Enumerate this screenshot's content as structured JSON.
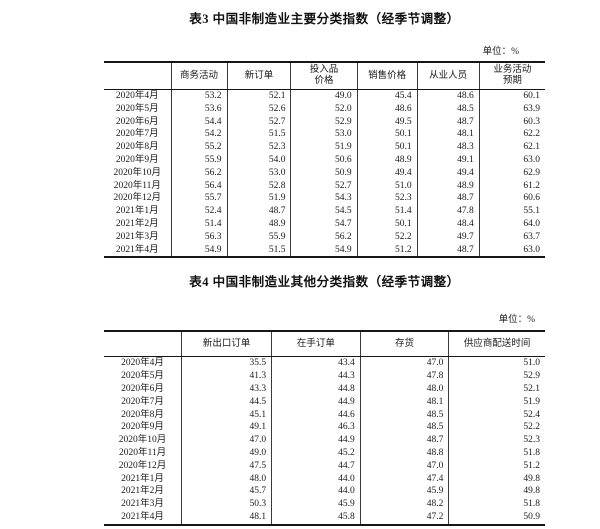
{
  "tables": [
    {
      "title": "表3  中国非制造业主要分类指数（经季节调整）",
      "unit_label": "单位：%",
      "columns": [
        "商务活动",
        "新订单",
        "投入品\n价格",
        "销售价格",
        "从业人员",
        "业务活动\n预期"
      ],
      "rows": [
        {
          "label": "2020年4月",
          "values": [
            "53.2",
            "52.1",
            "49.0",
            "45.4",
            "48.6",
            "60.1"
          ]
        },
        {
          "label": "2020年5月",
          "values": [
            "53.6",
            "52.6",
            "52.0",
            "48.6",
            "48.5",
            "63.9"
          ]
        },
        {
          "label": "2020年6月",
          "values": [
            "54.4",
            "52.7",
            "52.9",
            "49.5",
            "48.7",
            "60.3"
          ]
        },
        {
          "label": "2020年7月",
          "values": [
            "54.2",
            "51.5",
            "53.0",
            "50.1",
            "48.1",
            "62.2"
          ]
        },
        {
          "label": "2020年8月",
          "values": [
            "55.2",
            "52.3",
            "51.9",
            "50.1",
            "48.3",
            "62.1"
          ]
        },
        {
          "label": "2020年9月",
          "values": [
            "55.9",
            "54.0",
            "50.6",
            "48.9",
            "49.1",
            "63.0"
          ]
        },
        {
          "label": "2020年10月",
          "values": [
            "56.2",
            "53.0",
            "50.9",
            "49.4",
            "49.4",
            "62.9"
          ]
        },
        {
          "label": "2020年11月",
          "values": [
            "56.4",
            "52.8",
            "52.7",
            "51.0",
            "48.9",
            "61.2"
          ]
        },
        {
          "label": "2020年12月",
          "values": [
            "55.7",
            "51.9",
            "54.3",
            "52.3",
            "48.7",
            "60.6"
          ]
        },
        {
          "label": "2021年1月",
          "values": [
            "52.4",
            "48.7",
            "54.5",
            "51.4",
            "47.8",
            "55.1"
          ]
        },
        {
          "label": "2021年2月",
          "values": [
            "51.4",
            "48.9",
            "54.7",
            "50.1",
            "48.4",
            "64.0"
          ]
        },
        {
          "label": "2021年3月",
          "values": [
            "56.3",
            "55.9",
            "56.2",
            "52.2",
            "49.7",
            "63.7"
          ]
        },
        {
          "label": "2021年4月",
          "values": [
            "54.9",
            "51.5",
            "54.9",
            "51.2",
            "48.7",
            "63.0"
          ]
        }
      ]
    },
    {
      "title": "表4  中国非制造业其他分类指数（经季节调整）",
      "unit_label": "单位：%",
      "columns": [
        "新出口订单",
        "在手订单",
        "存货",
        "供应商配送时间"
      ],
      "rows": [
        {
          "label": "2020年4月",
          "values": [
            "35.5",
            "43.4",
            "47.0",
            "51.0"
          ]
        },
        {
          "label": "2020年5月",
          "values": [
            "41.3",
            "44.3",
            "47.8",
            "52.9"
          ]
        },
        {
          "label": "2020年6月",
          "values": [
            "43.3",
            "44.8",
            "48.0",
            "52.1"
          ]
        },
        {
          "label": "2020年7月",
          "values": [
            "44.5",
            "44.9",
            "48.1",
            "51.9"
          ]
        },
        {
          "label": "2020年8月",
          "values": [
            "45.1",
            "44.6",
            "48.5",
            "52.4"
          ]
        },
        {
          "label": "2020年9月",
          "values": [
            "49.1",
            "46.3",
            "48.5",
            "52.2"
          ]
        },
        {
          "label": "2020年10月",
          "values": [
            "47.0",
            "44.9",
            "48.7",
            "52.3"
          ]
        },
        {
          "label": "2020年11月",
          "values": [
            "49.0",
            "45.2",
            "48.8",
            "51.8"
          ]
        },
        {
          "label": "2020年12月",
          "values": [
            "47.5",
            "44.7",
            "47.0",
            "51.2"
          ]
        },
        {
          "label": "2021年1月",
          "values": [
            "48.0",
            "44.0",
            "47.4",
            "49.8"
          ]
        },
        {
          "label": "2021年2月",
          "values": [
            "45.7",
            "44.0",
            "45.9",
            "49.8"
          ]
        },
        {
          "label": "2021年3月",
          "values": [
            "50.3",
            "45.9",
            "48.2",
            "51.8"
          ]
        },
        {
          "label": "2021年4月",
          "values": [
            "48.1",
            "45.8",
            "47.2",
            "50.9"
          ]
        }
      ]
    }
  ]
}
